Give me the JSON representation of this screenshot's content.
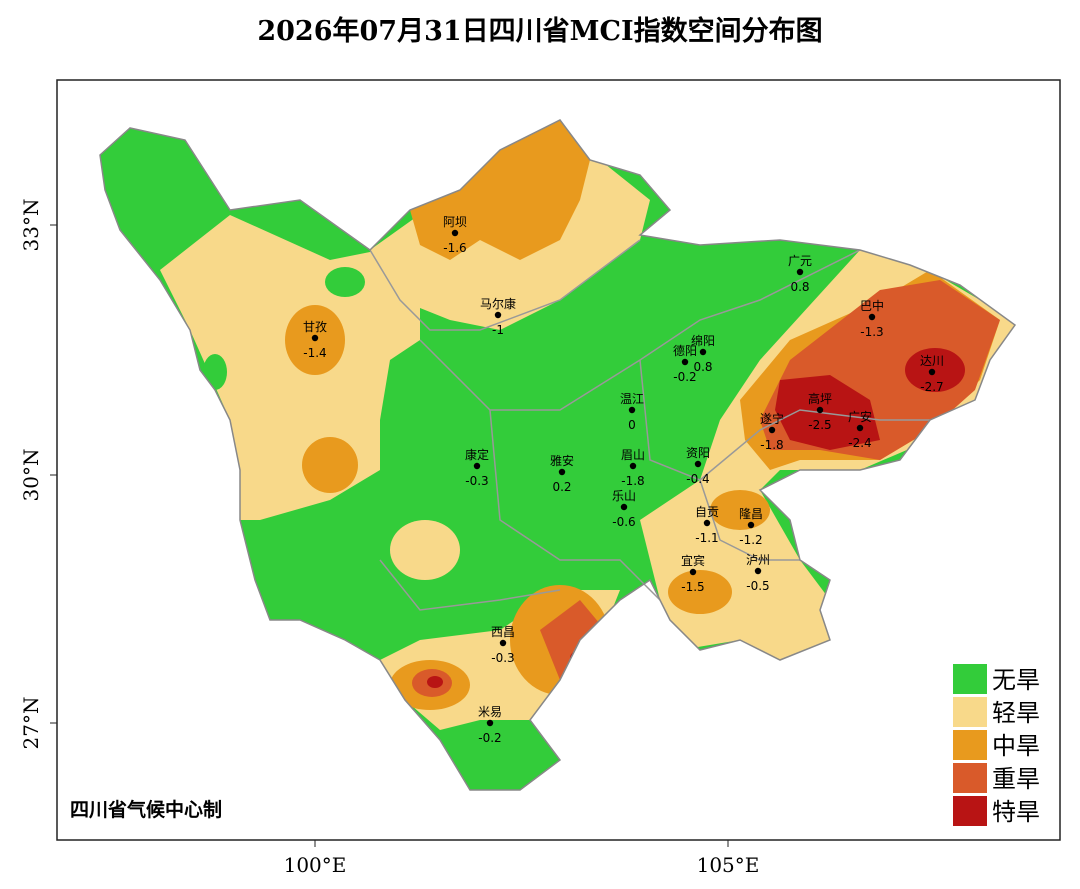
{
  "title": "2026年07月31日四川省MCI指数空间分布图",
  "lat_labels": [
    "33°N",
    "30°N",
    "27°N"
  ],
  "lon_labels": [
    "100°E",
    "105°E"
  ],
  "stations": [
    {
      "name": "阿坝",
      "value": -1.6
    },
    {
      "name": "马尔康",
      "value": -1
    },
    {
      "name": "甘孜",
      "value": -1.4
    },
    {
      "name": "广元",
      "value": 0.8
    },
    {
      "name": "巴中",
      "value": -1.3
    },
    {
      "name": "德阳",
      "value": -0.2
    },
    {
      "name": "绵阳",
      "value": 0.8
    },
    {
      "name": "温江",
      "value": 0
    },
    {
      "name": "达川",
      "value": -2.7
    },
    {
      "name": "高坪",
      "value": -2.5
    },
    {
      "name": "广安",
      "value": -2.4
    },
    {
      "name": "遂宁",
      "value": -1.8
    },
    {
      "name": "康定",
      "value": -0.3
    },
    {
      "name": "雅安",
      "value": 0.2
    },
    {
      "name": "眉山",
      "value": -1.8
    },
    {
      "name": "资阳",
      "value": -0.4
    },
    {
      "name": "乐山",
      "value": -0.6
    },
    {
      "name": "自贡",
      "value": -1.1
    },
    {
      "name": "隆昌",
      "value": -1.2
    },
    {
      "name": "宜宾",
      "value": -1.5
    },
    {
      "name": "泸州",
      "value": -0.5
    },
    {
      "name": "西昌",
      "value": -0.3
    },
    {
      "name": "米易",
      "value": -0.2
    }
  ],
  "legend": [
    {
      "label": "无旱",
      "color": "#33cc3a"
    },
    {
      "label": "轻旱",
      "color": "#f8d98a"
    },
    {
      "label": "中旱",
      "color": "#e89a1e"
    },
    {
      "label": "重旱",
      "color": "#d95a2a"
    },
    {
      "label": "特旱",
      "color": "#b81414"
    }
  ],
  "credit": "四川省气候中心制"
}
